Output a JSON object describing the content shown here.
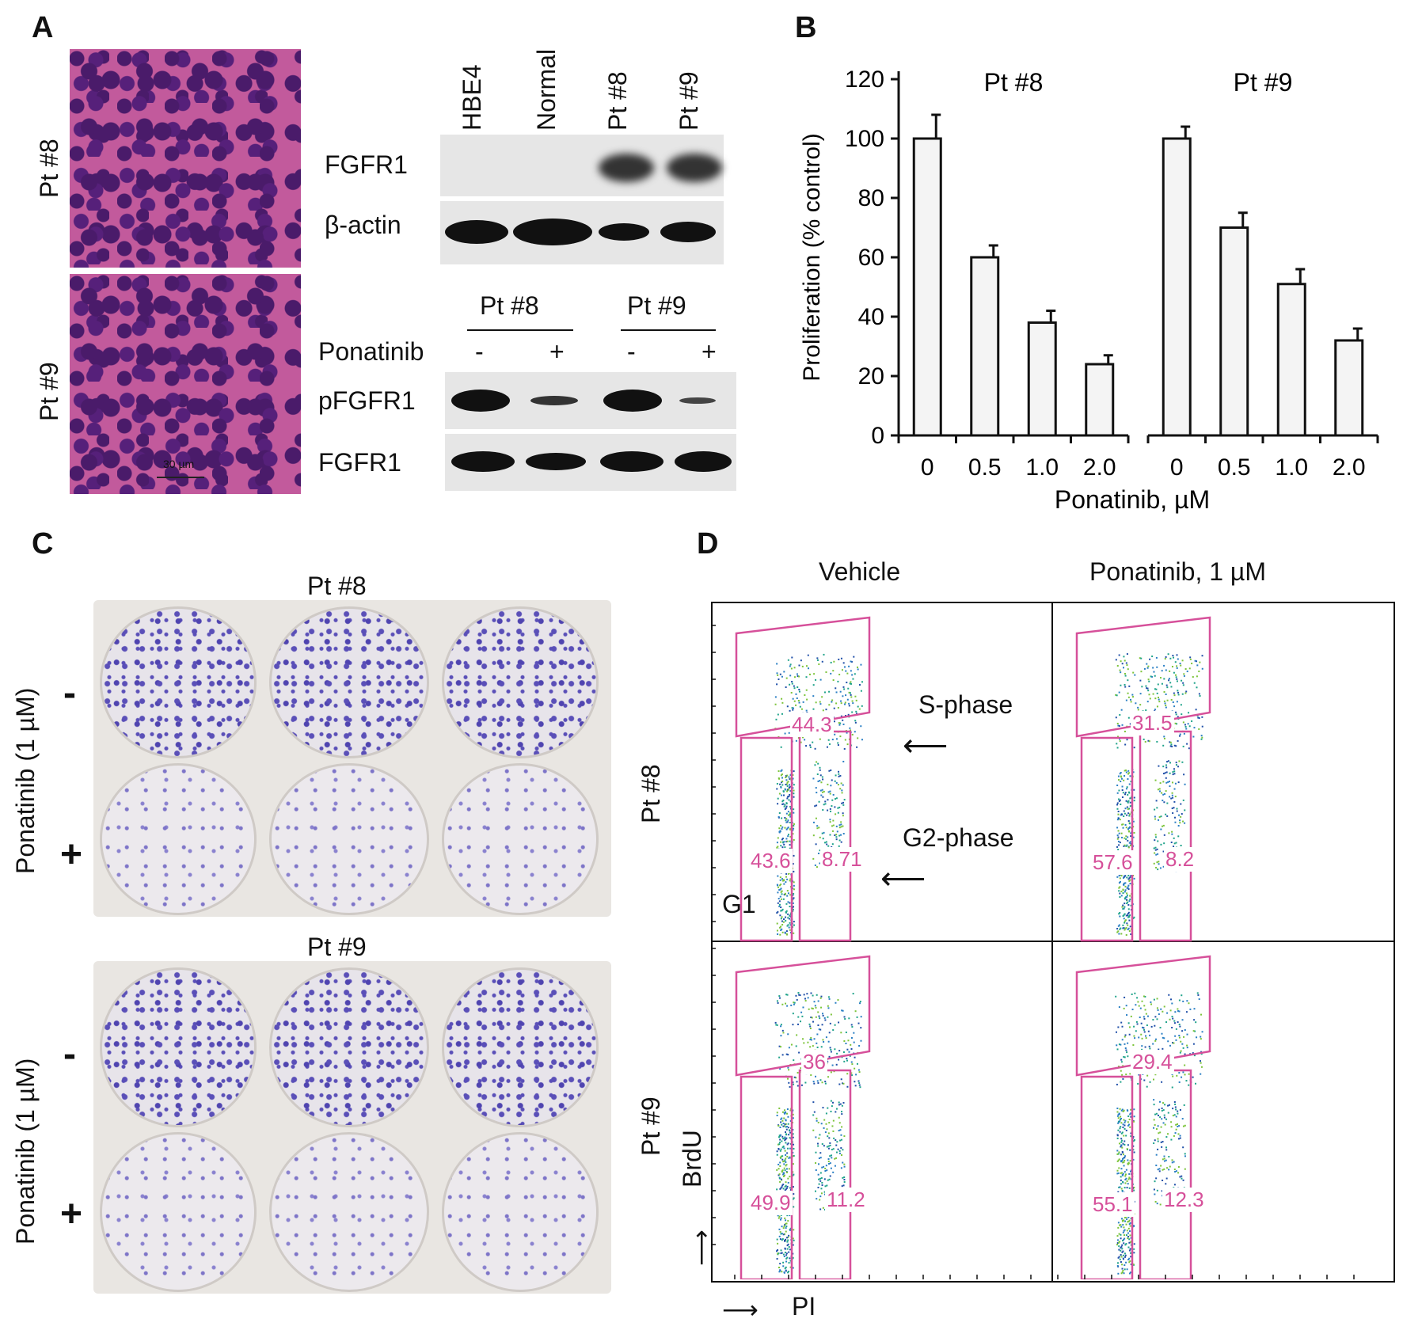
{
  "panels": {
    "a": "A",
    "b": "B",
    "c": "C",
    "d": "D"
  },
  "panelA": {
    "histology_labels": [
      "Pt #8",
      "Pt #9"
    ],
    "scale_bar": "30 µm",
    "blot1": {
      "lanes": [
        "HBE4",
        "Normal",
        "Pt #8",
        "Pt #9"
      ],
      "rows": [
        "FGFR1",
        "β-actin"
      ]
    },
    "blot2": {
      "groups": [
        "Pt #8",
        "Pt #9"
      ],
      "treatment_label": "Ponatinib",
      "signs": [
        "-",
        "+",
        "-",
        "+"
      ],
      "rows": [
        "pFGFR1",
        "FGFR1"
      ]
    }
  },
  "chart_data": {
    "type": "bar",
    "groups": [
      "Pt #8",
      "Pt #9"
    ],
    "categories": [
      "0",
      "0.5",
      "1.0",
      "2.0"
    ],
    "series": [
      {
        "name": "Pt #8",
        "values": [
          100,
          60,
          38,
          24
        ],
        "errors": [
          8,
          4,
          4,
          3
        ]
      },
      {
        "name": "Pt #9",
        "values": [
          100,
          70,
          51,
          32
        ],
        "errors": [
          4,
          5,
          5,
          4
        ]
      }
    ],
    "xlabel": "Ponatinib, µM",
    "ylabel": "Proliferation (% control)",
    "ylim": [
      0,
      120
    ],
    "yticks": [
      "0",
      "20",
      "40",
      "60",
      "80",
      "100",
      "120"
    ]
  },
  "panelC": {
    "plates": [
      "Pt #8",
      "Pt #9"
    ],
    "side_label": "Ponatinib (1 µM)",
    "row_signs": [
      "-",
      "+"
    ]
  },
  "panelD": {
    "columns": [
      "Vehicle",
      "Ponatinib, 1 µM"
    ],
    "rows": [
      "Pt #8",
      "Pt #9"
    ],
    "annotations": {
      "s_phase": "S-phase",
      "g2_phase": "G2-phase",
      "g1": "G1"
    },
    "axis_x": "PI",
    "axis_y": "BrdU",
    "gates": [
      {
        "s": "44.3",
        "g1": "43.6",
        "g2": "8.71"
      },
      {
        "s": "31.5",
        "g1": "57.6",
        "g2": "8.2"
      },
      {
        "s": "36",
        "g1": "49.9",
        "g2": "11.2"
      },
      {
        "s": "29.4",
        "g1": "55.1",
        "g2": "12.3"
      }
    ]
  }
}
